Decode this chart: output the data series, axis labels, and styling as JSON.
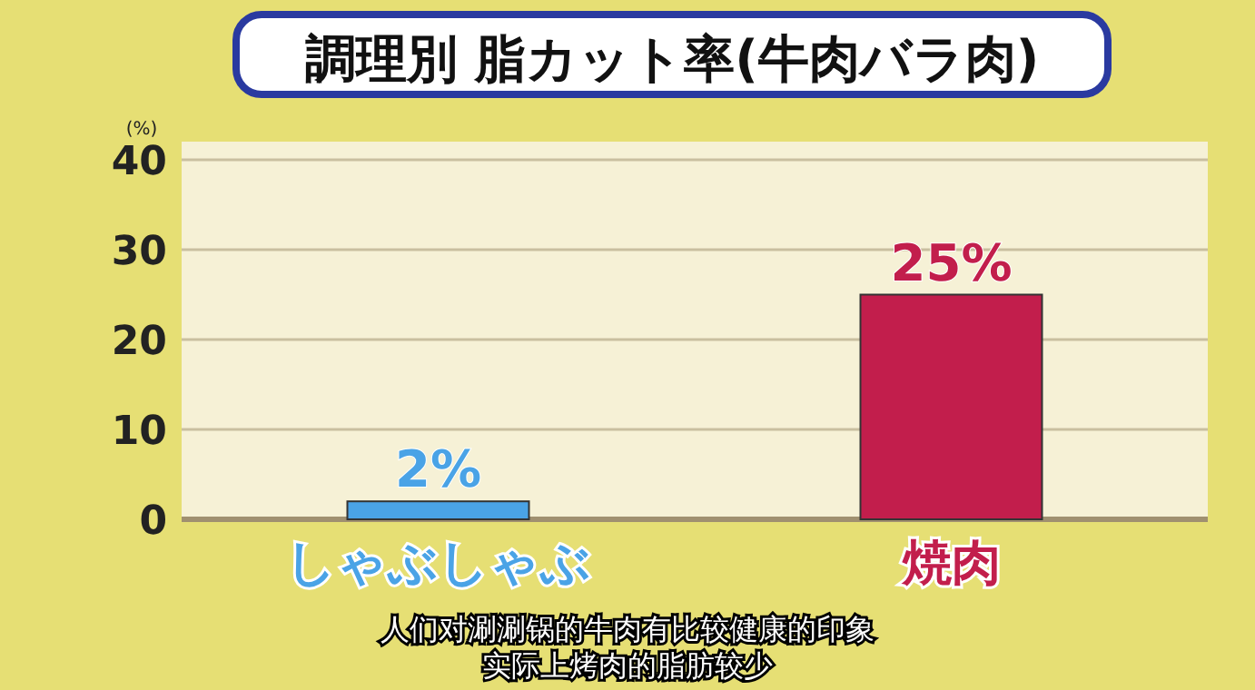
{
  "chart_data": {
    "type": "bar",
    "title": "調理別 脂カット率(牛肉バラ肉)",
    "ylabel": "(%)",
    "categories": [
      "しゃぶしゃぶ",
      "焼肉"
    ],
    "values": [
      2,
      25
    ],
    "colors": [
      "#4aa3e6",
      "#c21e4c"
    ],
    "value_labels": [
      "2%",
      "25%"
    ],
    "ylim": [
      0,
      40
    ],
    "yticks": [
      0,
      10,
      20,
      30,
      40
    ],
    "grid": "y",
    "annotations": [
      "人们对涮涮锅的牛肉有比较健康的印象",
      "实际上烤肉的脂肪较少"
    ]
  }
}
